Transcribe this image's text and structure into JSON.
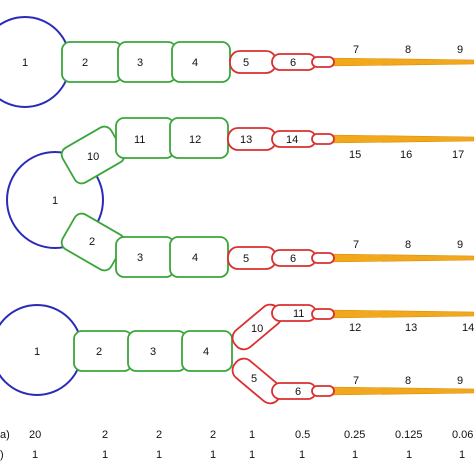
{
  "colors": {
    "soma": "#2b2bb8",
    "green": "#3aa63a",
    "green_fill": "#ffffff",
    "red": "#d93030",
    "orange": "#f2a81d",
    "text": "#111111"
  },
  "tree_a": {
    "labels": [
      "1",
      "2",
      "3",
      "4",
      "5",
      "6",
      "7",
      "8",
      "9"
    ]
  },
  "tree_b": {
    "soma_label": "1",
    "upper": [
      "10",
      "11",
      "12",
      "13",
      "14",
      "15",
      "16",
      "17"
    ],
    "lower": [
      "2",
      "3",
      "4",
      "5",
      "6",
      "7",
      "8",
      "9"
    ]
  },
  "tree_c": {
    "soma_label": "1",
    "trunk": [
      "2",
      "3",
      "4"
    ],
    "upper": [
      "10",
      "11",
      "12",
      "13",
      "14"
    ],
    "lower": [
      "5",
      "6",
      "7",
      "8",
      "9"
    ]
  },
  "table": {
    "row1_label": "a)",
    "row1": [
      "20",
      "2",
      "2",
      "2",
      "1",
      "0.5",
      "0.25",
      "0.125",
      "0.06"
    ],
    "row2_label": ")",
    "row2": [
      "1",
      "1",
      "1",
      "1",
      "1",
      "1",
      "1",
      "1",
      "1"
    ]
  }
}
